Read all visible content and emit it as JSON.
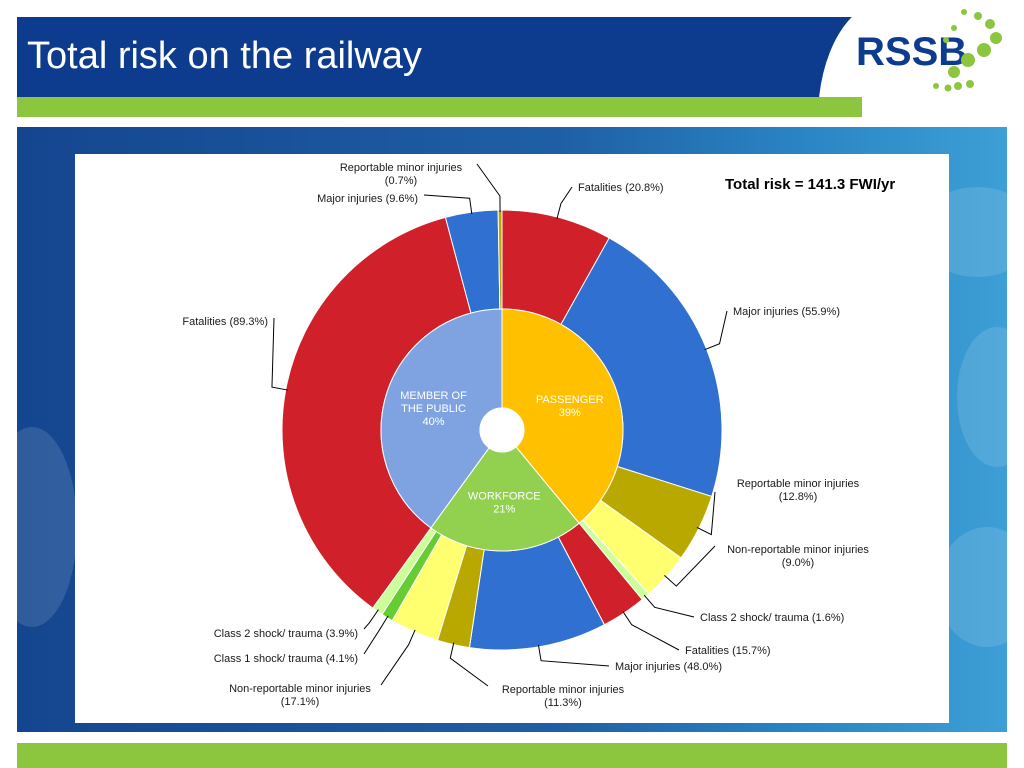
{
  "slide": {
    "title": "Total risk on the railway",
    "logo_text": "RSSB"
  },
  "colors": {
    "header_blue": "#0d3b8e",
    "accent_green": "#8cc63f",
    "logo_blue": "#0d3b8e",
    "logo_green": "#8cc63f"
  },
  "chart_data": {
    "type": "pie",
    "subtype": "sunburst",
    "title": "Total risk = 141.3 FWI/yr",
    "inner_ring": [
      {
        "name": "PASSENGER",
        "value": 39,
        "label": "39%",
        "color": "#ffc000"
      },
      {
        "name": "WORKFORCE",
        "value": 21,
        "label": "21%",
        "color": "#92d050"
      },
      {
        "name": "MEMBER OF THE PUBLIC",
        "name_lines": [
          "MEMBER OF",
          "THE PUBLIC"
        ],
        "value": 40,
        "label": "40%",
        "color": "#7fa3e0"
      }
    ],
    "outer_ring": [
      {
        "group": "PASSENGER",
        "name": "Fatalities",
        "value": 20.8,
        "text": "Fatalities (20.8%)",
        "color": "#d0202a"
      },
      {
        "group": "PASSENGER",
        "name": "Major injuries",
        "value": 55.9,
        "text": "Major injuries  (55.9%)",
        "color": "#3070d0"
      },
      {
        "group": "PASSENGER",
        "name": "Reportable minor injuries",
        "value": 12.8,
        "text": [
          "Reportable minor injuries",
          "(12.8%)"
        ],
        "color": "#b8a800"
      },
      {
        "group": "PASSENGER",
        "name": "Non-reportable minor injuries",
        "value": 9.0,
        "text": [
          "Non-reportable minor injuries",
          "(9.0%)"
        ],
        "color": "#ffff70"
      },
      {
        "group": "PASSENGER",
        "name": "Class 2 shock/ trauma",
        "value": 1.6,
        "text": "Class 2 shock/ trauma  (1.6%)",
        "color": "#ccff99"
      },
      {
        "group": "WORKFORCE",
        "name": "Fatalities",
        "value": 15.7,
        "text": "Fatalities (15.7%)",
        "color": "#d0202a"
      },
      {
        "group": "WORKFORCE",
        "name": "Major injuries",
        "value": 48.0,
        "text": "Major injuries  (48.0%)",
        "color": "#3070d0"
      },
      {
        "group": "WORKFORCE",
        "name": "Reportable minor injuries",
        "value": 11.3,
        "text": [
          "Reportable minor injuries",
          "(11.3%)"
        ],
        "color": "#b8a800"
      },
      {
        "group": "WORKFORCE",
        "name": "Non-reportable minor injuries",
        "value": 17.1,
        "text": [
          "Non-reportable minor injuries",
          "(17.1%)"
        ],
        "color": "#ffff70"
      },
      {
        "group": "WORKFORCE",
        "name": "Class 1 shock/ trauma",
        "value": 4.1,
        "text": "Class 1 shock/ trauma  (4.1%)",
        "color": "#66cc33"
      },
      {
        "group": "WORKFORCE",
        "name": "Class 2 shock/ trauma",
        "value": 3.9,
        "text": "Class 2 shock/ trauma  (3.9%)",
        "color": "#ccff99"
      },
      {
        "group": "MEMBER OF THE PUBLIC",
        "name": "Fatalities",
        "value": 89.3,
        "text": "Fatalities (89.3%)",
        "color": "#d0202a"
      },
      {
        "group": "MEMBER OF THE PUBLIC",
        "name": "Major injuries",
        "value": 9.6,
        "text": "Major injuries  (9.6%)",
        "color": "#3070d0"
      },
      {
        "group": "MEMBER OF THE PUBLIC",
        "name": "Reportable minor injuries",
        "value": 0.7,
        "text": [
          "Reportable minor injuries",
          "(0.7%)"
        ],
        "color": "#b8a800"
      }
    ]
  }
}
